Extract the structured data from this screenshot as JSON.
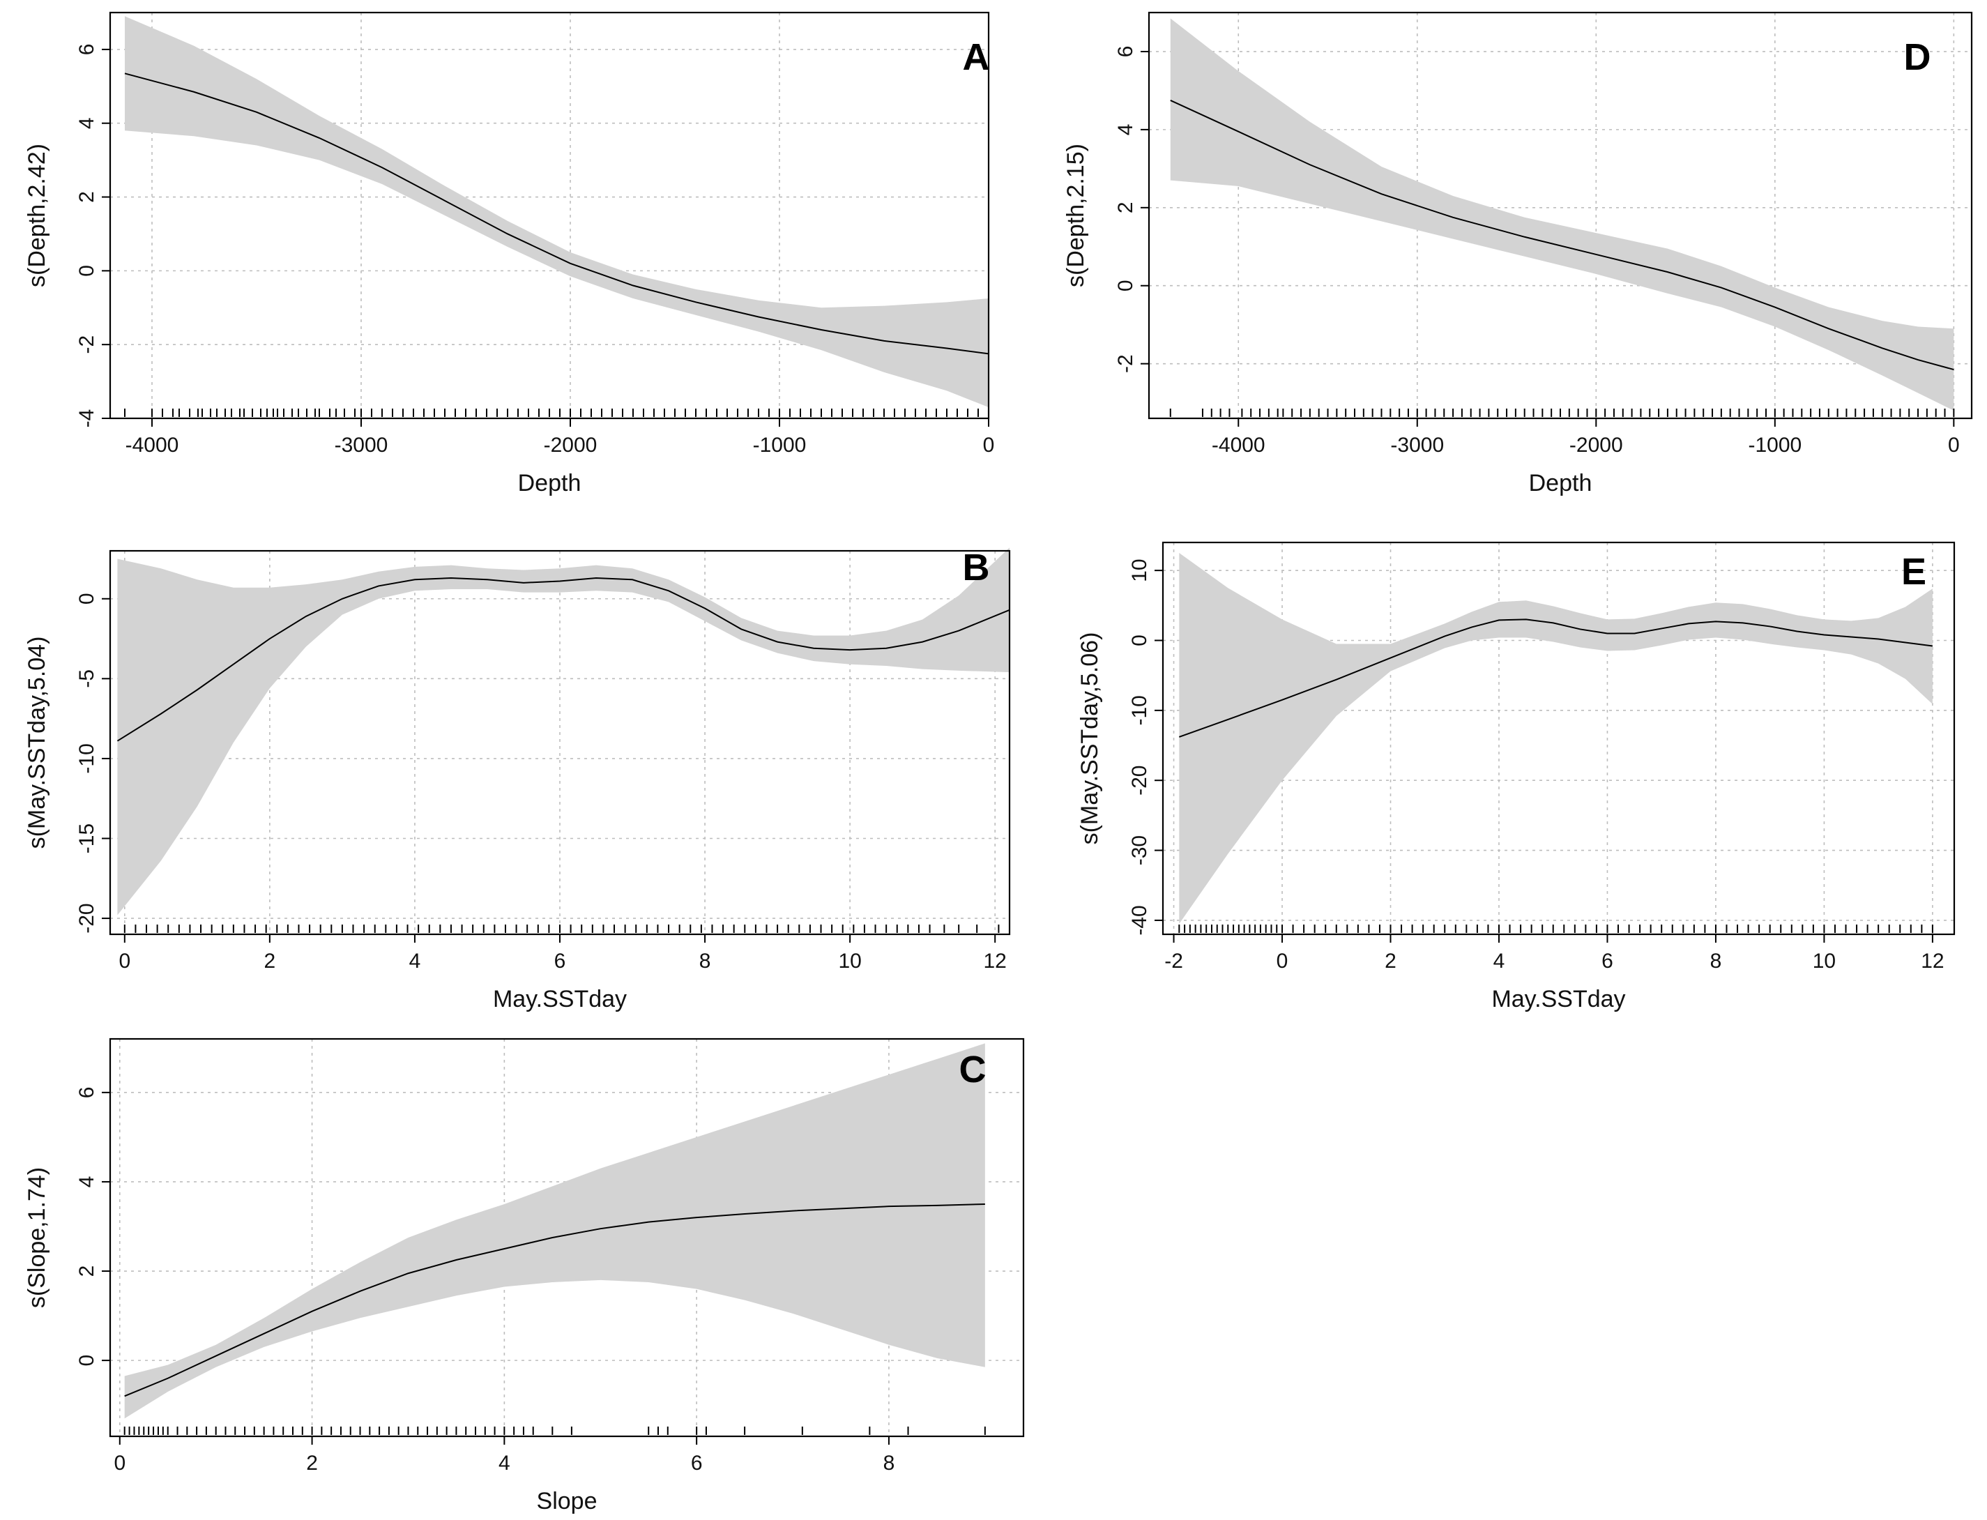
{
  "chart_data": [
    {
      "type": "line",
      "panel": "A",
      "xlabel": "Depth",
      "ylabel": "s(Depth,2.42)",
      "xlim": [
        -4200,
        0
      ],
      "ylim": [
        -4,
        7
      ],
      "xticks": [
        -4000,
        -3000,
        -2000,
        -1000,
        0
      ],
      "yticks": [
        -4,
        -2,
        0,
        2,
        4,
        6
      ],
      "x": [
        -4130,
        -3800,
        -3500,
        -3200,
        -2900,
        -2600,
        -2300,
        -2000,
        -1700,
        -1400,
        -1100,
        -800,
        -500,
        -200,
        0
      ],
      "y": [
        5.35,
        4.85,
        4.3,
        3.6,
        2.8,
        1.9,
        1.0,
        0.2,
        -0.4,
        -0.85,
        -1.25,
        -1.6,
        -1.9,
        -2.1,
        -2.25
      ],
      "upper": [
        6.9,
        6.1,
        5.2,
        4.2,
        3.3,
        2.3,
        1.35,
        0.5,
        -0.1,
        -0.5,
        -0.8,
        -1.0,
        -0.95,
        -0.85,
        -0.75
      ],
      "lower": [
        3.8,
        3.65,
        3.4,
        3.0,
        2.35,
        1.5,
        0.65,
        -0.15,
        -0.75,
        -1.2,
        -1.65,
        -2.15,
        -2.75,
        -3.25,
        -3.7
      ],
      "rug_x": [
        -4130,
        -4000,
        -3950,
        -3900,
        -3870,
        -3820,
        -3780,
        -3760,
        -3720,
        -3690,
        -3650,
        -3620,
        -3580,
        -3560,
        -3520,
        -3480,
        -3450,
        -3420,
        -3400,
        -3370,
        -3330,
        -3300,
        -3260,
        -3220,
        -3200,
        -3150,
        -3120,
        -3080,
        -3030,
        -3000,
        -2950,
        -2900,
        -2850,
        -2800,
        -2750,
        -2700,
        -2650,
        -2600,
        -2550,
        -2500,
        -2450,
        -2400,
        -2350,
        -2300,
        -2250,
        -2200,
        -2150,
        -2100,
        -2050,
        -2000,
        -1950,
        -1900,
        -1850,
        -1800,
        -1750,
        -1700,
        -1650,
        -1600,
        -1550,
        -1500,
        -1450,
        -1400,
        -1350,
        -1300,
        -1250,
        -1200,
        -1150,
        -1100,
        -1050,
        -1000,
        -950,
        -900,
        -850,
        -800,
        -750,
        -700,
        -650,
        -600,
        -550,
        -500,
        -450,
        -400,
        -350,
        -300,
        -250,
        -200,
        -150,
        -100,
        -50,
        0
      ]
    },
    {
      "type": "line",
      "panel": "B",
      "xlabel": "May.SSTday",
      "ylabel": "s(May.SSTday,5.04)",
      "xlim": [
        -0.2,
        12.2
      ],
      "ylim": [
        -21,
        3
      ],
      "xticks": [
        0,
        2,
        4,
        6,
        8,
        10,
        12
      ],
      "yticks": [
        -20,
        -15,
        -10,
        -5,
        0
      ],
      "x": [
        -0.1,
        0.5,
        1.0,
        1.5,
        2.0,
        2.5,
        3.0,
        3.5,
        4.0,
        4.5,
        5.0,
        5.5,
        6.0,
        6.5,
        7.0,
        7.5,
        8.0,
        8.5,
        9.0,
        9.5,
        10.0,
        10.5,
        11.0,
        11.5,
        12.2
      ],
      "y": [
        -8.9,
        -7.2,
        -5.7,
        -4.1,
        -2.5,
        -1.1,
        0.0,
        0.8,
        1.2,
        1.3,
        1.2,
        1.0,
        1.1,
        1.3,
        1.2,
        0.5,
        -0.6,
        -1.9,
        -2.7,
        -3.1,
        -3.2,
        -3.1,
        -2.7,
        -2.0,
        -0.7
      ],
      "upper": [
        2.5,
        1.9,
        1.2,
        0.7,
        0.7,
        0.9,
        1.2,
        1.7,
        2.0,
        2.1,
        1.9,
        1.8,
        1.9,
        2.1,
        1.9,
        1.2,
        0.1,
        -1.2,
        -2.0,
        -2.3,
        -2.3,
        -2.0,
        -1.3,
        0.2,
        3.2
      ],
      "lower": [
        -19.8,
        -16.4,
        -13.0,
        -9.0,
        -5.6,
        -3.0,
        -1.0,
        0.0,
        0.5,
        0.6,
        0.6,
        0.4,
        0.4,
        0.5,
        0.4,
        -0.2,
        -1.4,
        -2.6,
        -3.4,
        -3.9,
        -4.1,
        -4.2,
        -4.4,
        -4.5,
        -4.6
      ],
      "rug_x": [
        0.0,
        0.15,
        0.3,
        0.45,
        0.6,
        0.75,
        0.9,
        1.05,
        1.2,
        1.35,
        1.5,
        1.65,
        1.8,
        1.95,
        2.1,
        2.25,
        2.4,
        2.55,
        2.7,
        2.85,
        3.0,
        3.15,
        3.3,
        3.45,
        3.6,
        3.75,
        3.9,
        4.05,
        4.2,
        4.35,
        4.5,
        4.65,
        4.8,
        4.95,
        5.1,
        5.25,
        5.4,
        5.55,
        5.7,
        5.85,
        6.0,
        6.15,
        6.3,
        6.45,
        6.6,
        6.75,
        6.9,
        7.05,
        7.2,
        7.35,
        7.5,
        7.65,
        7.8,
        7.95,
        8.1,
        8.25,
        8.4,
        8.55,
        8.7,
        8.85,
        9.0,
        9.15,
        9.3,
        9.45,
        9.6,
        9.75,
        9.9,
        10.05,
        10.2,
        10.35,
        10.5,
        10.65,
        10.8,
        10.95,
        11.1,
        11.3,
        11.5,
        11.75,
        12.05
      ]
    },
    {
      "type": "line",
      "panel": "C",
      "xlabel": "Slope",
      "ylabel": "s(Slope,1.74)",
      "xlim": [
        -0.1,
        9.4
      ],
      "ylim": [
        -1.7,
        7.2
      ],
      "xticks": [
        0,
        2,
        4,
        6,
        8
      ],
      "yticks": [
        0,
        2,
        4,
        6
      ],
      "x": [
        0.05,
        0.5,
        1.0,
        1.5,
        2.0,
        2.5,
        3.0,
        3.5,
        4.0,
        4.5,
        5.0,
        5.5,
        6.0,
        6.5,
        7.0,
        7.5,
        8.0,
        8.5,
        9.0
      ],
      "y": [
        -0.8,
        -0.4,
        0.1,
        0.6,
        1.1,
        1.55,
        1.95,
        2.25,
        2.5,
        2.75,
        2.95,
        3.1,
        3.2,
        3.28,
        3.35,
        3.4,
        3.45,
        3.47,
        3.5
      ],
      "upper": [
        -0.35,
        -0.1,
        0.35,
        0.95,
        1.6,
        2.2,
        2.75,
        3.15,
        3.5,
        3.9,
        4.3,
        4.65,
        5.0,
        5.35,
        5.7,
        6.05,
        6.4,
        6.75,
        7.1
      ],
      "lower": [
        -1.3,
        -0.7,
        -0.15,
        0.3,
        0.65,
        0.95,
        1.2,
        1.45,
        1.65,
        1.75,
        1.8,
        1.75,
        1.6,
        1.35,
        1.05,
        0.7,
        0.35,
        0.05,
        -0.15
      ],
      "rug_x": [
        0.05,
        0.1,
        0.15,
        0.2,
        0.25,
        0.3,
        0.35,
        0.4,
        0.45,
        0.5,
        0.6,
        0.7,
        0.8,
        0.9,
        1.0,
        1.1,
        1.2,
        1.3,
        1.4,
        1.5,
        1.6,
        1.7,
        1.8,
        1.9,
        2.0,
        2.1,
        2.2,
        2.3,
        2.4,
        2.5,
        2.6,
        2.7,
        2.8,
        2.9,
        3.0,
        3.1,
        3.2,
        3.3,
        3.4,
        3.5,
        3.6,
        3.7,
        3.8,
        3.9,
        4.0,
        4.1,
        4.2,
        4.3,
        4.5,
        4.7,
        5.5,
        5.6,
        5.7,
        6.0,
        6.1,
        6.5,
        7.1,
        7.8,
        8.2,
        9.0
      ]
    },
    {
      "type": "line",
      "panel": "D",
      "xlabel": "Depth",
      "ylabel": "s(Depth,2.15)",
      "xlim": [
        -4500,
        100
      ],
      "ylim": [
        -3.4,
        7
      ],
      "xticks": [
        -4000,
        -3000,
        -2000,
        -1000,
        0
      ],
      "yticks": [
        -2,
        0,
        2,
        4,
        6
      ],
      "x": [
        -4380,
        -4000,
        -3600,
        -3200,
        -2800,
        -2400,
        -2000,
        -1600,
        -1300,
        -1000,
        -700,
        -400,
        -200,
        0
      ],
      "y": [
        4.75,
        3.95,
        3.1,
        2.35,
        1.75,
        1.25,
        0.8,
        0.35,
        -0.05,
        -0.55,
        -1.1,
        -1.6,
        -1.9,
        -2.15
      ],
      "upper": [
        6.85,
        5.5,
        4.2,
        3.05,
        2.3,
        1.75,
        1.35,
        0.95,
        0.5,
        -0.05,
        -0.55,
        -0.9,
        -1.05,
        -1.1
      ],
      "lower": [
        2.7,
        2.55,
        2.1,
        1.65,
        1.2,
        0.75,
        0.3,
        -0.2,
        -0.55,
        -1.05,
        -1.65,
        -2.3,
        -2.75,
        -3.2
      ],
      "rug_x": [
        -4380,
        -4200,
        -4150,
        -4100,
        -4050,
        -3980,
        -3930,
        -3880,
        -3830,
        -3780,
        -3750,
        -3700,
        -3650,
        -3600,
        -3550,
        -3500,
        -3450,
        -3400,
        -3350,
        -3300,
        -3250,
        -3200,
        -3150,
        -3100,
        -3050,
        -3000,
        -2950,
        -2900,
        -2850,
        -2800,
        -2750,
        -2700,
        -2650,
        -2600,
        -2550,
        -2500,
        -2450,
        -2400,
        -2350,
        -2300,
        -2250,
        -2200,
        -2150,
        -2100,
        -2050,
        -2000,
        -1950,
        -1900,
        -1850,
        -1800,
        -1750,
        -1700,
        -1650,
        -1600,
        -1550,
        -1500,
        -1450,
        -1400,
        -1350,
        -1300,
        -1250,
        -1200,
        -1150,
        -1100,
        -1050,
        -1000,
        -950,
        -900,
        -850,
        -800,
        -750,
        -700,
        -650,
        -600,
        -550,
        -500,
        -450,
        -400,
        -350,
        -300,
        -250,
        -200,
        -150,
        -100,
        -50,
        0
      ]
    },
    {
      "type": "line",
      "panel": "E",
      "xlabel": "May.SSTday",
      "ylabel": "s(May.SSTday,5.06)",
      "xlim": [
        -2.2,
        12.4
      ],
      "ylim": [
        -42,
        14
      ],
      "xticks": [
        -2,
        0,
        2,
        4,
        6,
        8,
        10,
        12
      ],
      "yticks": [
        -40,
        -30,
        -20,
        -10,
        0,
        10
      ],
      "x": [
        -1.9,
        -1.0,
        0.0,
        1.0,
        2.0,
        3.0,
        3.5,
        4.0,
        4.5,
        5.0,
        5.5,
        6.0,
        6.5,
        7.0,
        7.5,
        8.0,
        8.5,
        9.0,
        9.5,
        10.0,
        10.5,
        11.0,
        11.5,
        12.0
      ],
      "y": [
        -13.8,
        -11.3,
        -8.5,
        -5.6,
        -2.5,
        0.6,
        1.9,
        2.9,
        3.0,
        2.5,
        1.6,
        1.0,
        1.0,
        1.7,
        2.4,
        2.7,
        2.5,
        2.0,
        1.3,
        0.8,
        0.5,
        0.2,
        -0.3,
        -0.8
      ],
      "upper": [
        12.5,
        7.5,
        3.0,
        -0.5,
        -0.5,
        2.4,
        4.1,
        5.5,
        5.7,
        4.9,
        3.9,
        3.0,
        3.1,
        3.9,
        4.8,
        5.4,
        5.2,
        4.5,
        3.6,
        3.0,
        2.8,
        3.2,
        4.8,
        7.4
      ],
      "lower": [
        -40.5,
        -30.5,
        -20.0,
        -10.8,
        -4.4,
        -1.1,
        0.0,
        0.4,
        0.4,
        -0.2,
        -1.0,
        -1.5,
        -1.4,
        -0.7,
        0.1,
        0.4,
        0.1,
        -0.5,
        -1.0,
        -1.4,
        -2.0,
        -3.3,
        -5.5,
        -9.1
      ],
      "rug_x": [
        -1.9,
        -1.8,
        -1.7,
        -1.6,
        -1.5,
        -1.4,
        -1.3,
        -1.2,
        -1.1,
        -1.0,
        -0.9,
        -0.8,
        -0.7,
        -0.6,
        -0.5,
        -0.4,
        -0.3,
        -0.2,
        -0.1,
        0.0,
        0.2,
        0.4,
        0.6,
        0.8,
        1.0,
        1.2,
        1.4,
        1.6,
        1.8,
        2.0,
        2.2,
        2.4,
        2.6,
        2.8,
        3.0,
        3.2,
        3.4,
        3.6,
        3.8,
        4.0,
        4.2,
        4.4,
        4.6,
        4.8,
        5.0,
        5.2,
        5.4,
        5.6,
        5.8,
        6.0,
        6.2,
        6.4,
        6.6,
        6.8,
        7.0,
        7.2,
        7.4,
        7.6,
        7.8,
        8.0,
        8.2,
        8.4,
        8.6,
        8.8,
        9.0,
        9.2,
        9.4,
        9.6,
        9.8,
        10.0,
        10.2,
        10.4,
        10.6,
        10.8,
        11.0,
        11.2,
        11.4,
        11.6,
        11.8,
        12.0
      ]
    }
  ],
  "colors": {
    "band": "#d3d3d3",
    "line": "#000000",
    "grid": "#bdbdbd"
  }
}
